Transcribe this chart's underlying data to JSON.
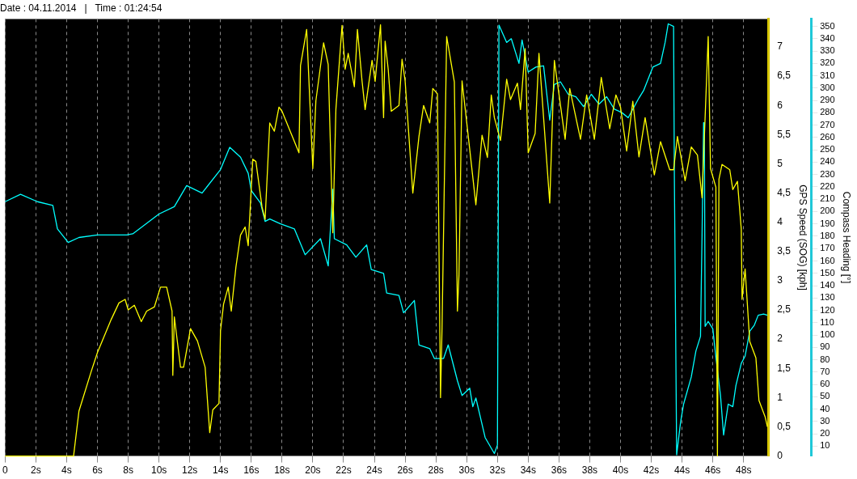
{
  "chart_data": {
    "type": "line",
    "title": "Date : 04.11.2014   |   Time : 01:24:54",
    "ylabel": "GPS Speed (SOG) [kph]",
    "y2label": "Compass Heading [°]",
    "grid": "x",
    "marker": "none",
    "line_style": "solid",
    "xlim": [
      0,
      49.6
    ],
    "xticks": [
      {
        "value": 0,
        "label": "0"
      },
      {
        "value": 2,
        "label": "2s"
      },
      {
        "value": 4,
        "label": "4s"
      },
      {
        "value": 6,
        "label": "6s"
      },
      {
        "value": 8,
        "label": "8s"
      },
      {
        "value": 10,
        "label": "10s"
      },
      {
        "value": 12,
        "label": "12s"
      },
      {
        "value": 14,
        "label": "14s"
      },
      {
        "value": 16,
        "label": "16s"
      },
      {
        "value": 18,
        "label": "18s"
      },
      {
        "value": 20,
        "label": "20s"
      },
      {
        "value": 22,
        "label": "22s"
      },
      {
        "value": 24,
        "label": "24s"
      },
      {
        "value": 26,
        "label": "26s"
      },
      {
        "value": 28,
        "label": "28s"
      },
      {
        "value": 30,
        "label": "30s"
      },
      {
        "value": 32,
        "label": "32s"
      },
      {
        "value": 34,
        "label": "34s"
      },
      {
        "value": 36,
        "label": "36s"
      },
      {
        "value": 38,
        "label": "38s"
      },
      {
        "value": 40,
        "label": "40s"
      },
      {
        "value": 42,
        "label": "42s"
      },
      {
        "value": 44,
        "label": "44s"
      },
      {
        "value": 46,
        "label": "46s"
      },
      {
        "value": 48,
        "label": "48s"
      }
    ],
    "ylim": [
      0,
      7.48
    ],
    "yticks": [
      0,
      {
        "value": 0.5,
        "label": "0,5"
      },
      1,
      {
        "value": 1.5,
        "label": "1,5"
      },
      2,
      {
        "value": 2.5,
        "label": "2,5"
      },
      3,
      {
        "value": 3.5,
        "label": "3,5"
      },
      4,
      {
        "value": 4.5,
        "label": "4,5"
      },
      5,
      {
        "value": 5.5,
        "label": "5,5"
      },
      6,
      {
        "value": 6.5,
        "label": "6,5"
      },
      7
    ],
    "y2lim": [
      2,
      356
    ],
    "y2ticks": [
      10,
      20,
      30,
      40,
      50,
      60,
      70,
      80,
      90,
      100,
      110,
      120,
      130,
      140,
      150,
      160,
      170,
      180,
      190,
      200,
      210,
      220,
      230,
      240,
      250,
      260,
      270,
      280,
      290,
      300,
      310,
      320,
      330,
      340,
      350
    ],
    "series": [
      {
        "color": "#ffff00",
        "axis": "y",
        "x": [
          0,
          4.45,
          4.8,
          5.6,
          6.0,
          6.9,
          7.4,
          7.8,
          8.0,
          8.4,
          8.85,
          9.2,
          9.7,
          10.1,
          10.5,
          10.85,
          10.9,
          11.0,
          11.4,
          11.6,
          12.05,
          12.5,
          13.0,
          13.3,
          13.5,
          13.9,
          14.0,
          14.2,
          14.5,
          14.7,
          15.0,
          15.3,
          15.6,
          15.8,
          16.1,
          16.3,
          16.7,
          16.9,
          17.2,
          17.5,
          17.8,
          18.0,
          19.1,
          19.2,
          19.6,
          20.0,
          20.2,
          20.7,
          21.0,
          21.3,
          21.5,
          21.9,
          22.1,
          22.3,
          22.7,
          22.9,
          23.2,
          23.4,
          23.85,
          24.05,
          24.4,
          24.6,
          24.7,
          24.9,
          25.1,
          25.6,
          25.8,
          26.0,
          26.5,
          26.9,
          27.2,
          27.6,
          27.8,
          28.1,
          28.3,
          28.4,
          28.7,
          29.2,
          29.4,
          29.5,
          29.7,
          30.05,
          30.6,
          31.0,
          31.35,
          31.6,
          31.8,
          32.2,
          32.6,
          32.85,
          33.3,
          33.5,
          33.8,
          34.0,
          34.45,
          34.7,
          35.4,
          35.7,
          36.4,
          36.7,
          37.4,
          37.8,
          38.3,
          38.75,
          39.3,
          39.7,
          40.0,
          40.4,
          40.8,
          41.2,
          41.6,
          42.2,
          42.6,
          43.2,
          43.45,
          43.7,
          44.2,
          44.6,
          45.0,
          45.3,
          45.7,
          45.85,
          46.2,
          46.3,
          46.4,
          46.6,
          47.1,
          47.3,
          47.6,
          47.85,
          47.9,
          48.1,
          48.4,
          48.8,
          49.0,
          49.4,
          49.55
        ],
        "values": [
          0,
          0,
          0.77,
          1.45,
          1.77,
          2.34,
          2.62,
          2.68,
          2.5,
          2.58,
          2.3,
          2.48,
          2.55,
          2.89,
          2.89,
          2.48,
          1.38,
          2.38,
          1.52,
          1.52,
          2.18,
          1.97,
          1.52,
          0.4,
          0.79,
          0.9,
          2.14,
          2.6,
          2.89,
          2.48,
          3.23,
          3.78,
          3.92,
          3.6,
          5.08,
          5.04,
          4.26,
          4.05,
          5.7,
          5.56,
          5.97,
          5.9,
          5.19,
          6.68,
          7.3,
          4.92,
          6.08,
          7.07,
          6.7,
          3.82,
          5.93,
          7.37,
          6.62,
          6.89,
          6.32,
          7.3,
          6.42,
          5.93,
          6.77,
          6.41,
          7.38,
          5.79,
          7.1,
          6.62,
          5.9,
          6.0,
          6.79,
          6.42,
          4.5,
          5.47,
          6.0,
          5.7,
          6.29,
          6.2,
          1.0,
          2.2,
          7.18,
          6.4,
          2.48,
          3.1,
          6.42,
          5.6,
          4.3,
          5.49,
          5.11,
          6.18,
          5.79,
          5.4,
          6.45,
          6.1,
          6.38,
          5.93,
          6.97,
          5.19,
          5.52,
          6.89,
          4.33,
          6.77,
          5.42,
          6.29,
          5.42,
          6.18,
          5.42,
          6.48,
          5.6,
          6.18,
          5.97,
          5.22,
          6.07,
          5.12,
          5.79,
          4.81,
          5.38,
          4.9,
          4.9,
          5.47,
          4.71,
          5.29,
          5.15,
          4.42,
          7.18,
          4.92,
          4.6,
          0,
          4.74,
          4.99,
          4.9,
          4.56,
          4.7,
          3.88,
          2.68,
          3.2,
          1.96,
          1.68,
          0.95,
          0.67,
          0.5
        ]
      },
      {
        "color": "#00ffff",
        "axis": "y2",
        "x": [
          0,
          1.0,
          2.1,
          3.1,
          3.4,
          4.1,
          4.8,
          6.0,
          7.9,
          8.3,
          10.0,
          11.0,
          11.8,
          12.8,
          14.0,
          14.6,
          15.3,
          15.8,
          16.0,
          16.6,
          16.9,
          17.2,
          17.9,
          18.8,
          19.5,
          20.5,
          21.0,
          21.3,
          21.4,
          22.2,
          22.8,
          23.5,
          23.8,
          24.6,
          24.8,
          25.6,
          25.9,
          26.6,
          26.9,
          27.6,
          27.9,
          28.5,
          28.8,
          29.4,
          29.7,
          30.2,
          30.4,
          30.6,
          31.2,
          31.8,
          32.0,
          32.1,
          32.6,
          32.9,
          33.4,
          33.6,
          34.0,
          34.5,
          35.0,
          35.4,
          35.7,
          36.1,
          36.6,
          37.1,
          37.6,
          38.1,
          38.6,
          39.1,
          39.6,
          40.1,
          40.5,
          41.2,
          41.5,
          42.1,
          42.6,
          42.9,
          43.1,
          43.45,
          43.5,
          43.65,
          43.9,
          44.1,
          44.6,
          44.9,
          45.2,
          45.3,
          45.4,
          45.45,
          45.5,
          45.7,
          46.0,
          46.2,
          46.5,
          46.7,
          47.0,
          47.3,
          47.5,
          47.85,
          48.1,
          48.4,
          48.7,
          48.95,
          49.3,
          49.55
        ],
        "values": [
          208,
          214,
          208,
          205,
          186,
          175,
          179,
          181,
          181,
          182,
          198,
          204,
          221,
          215,
          234,
          252,
          244,
          231,
          217,
          207,
          192,
          194,
          190,
          186,
          165,
          178,
          156,
          218,
          178,
          173,
          163,
          173,
          153,
          150,
          134,
          132,
          118,
          128,
          92,
          89,
          81,
          81,
          92,
          63,
          51,
          57,
          42,
          49,
          17,
          4,
          11,
          351,
          337,
          340,
          320,
          339,
          313,
          317,
          318,
          274,
          303,
          305,
          295,
          293,
          285,
          295,
          287,
          293,
          283,
          280,
          276,
          292,
          298,
          317,
          320,
          337,
          352,
          350,
          230,
          3,
          29,
          44,
          66,
          87,
          99,
          181,
          272,
          272,
          107,
          111,
          105,
          82,
          51,
          19,
          44,
          42,
          59,
          77,
          83,
          103,
          108,
          116,
          117,
          116
        ]
      }
    ]
  }
}
